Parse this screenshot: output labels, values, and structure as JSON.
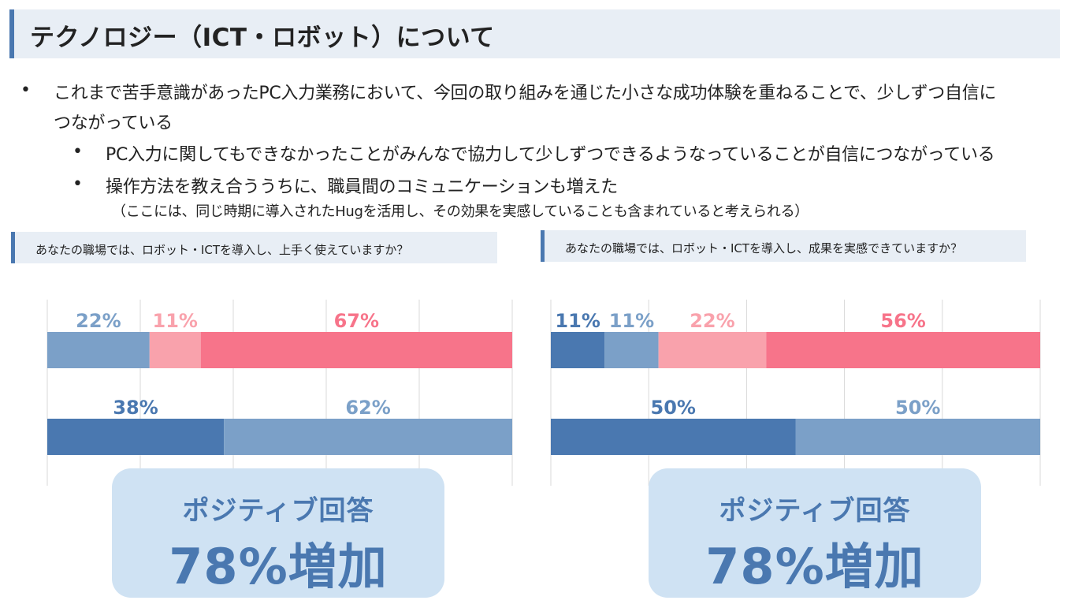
{
  "title": "テクノロジー（ICT・ロボット）について",
  "bullets": [
    {
      "dot": "•",
      "lines": [
        "これまで苦手意識があったPC入力業務において、今回の取り組みを通じた小さな成功体験を重ねることで、少しずつ自信に",
        "つながっている"
      ]
    },
    {
      "dot": "•",
      "lines": [
        "PC入力に関してもできなかったことがみんなで協力して少しずつできるようなっていることが自信につながっている"
      ]
    },
    {
      "dot": "•",
      "lines": [
        "操作方法を教え合ううちに、職員間のコミュニケーションも増えた"
      ]
    }
  ],
  "note": "（ここには、同じ時期に導入されたHugを活用し、その効果を実感していることも含まれていると考えられる）",
  "colors": {
    "dark_blue": "#4a78b0",
    "mid_blue": "#7ba0c8",
    "light_pink": "#f9a2ac",
    "pink": "#f7748a",
    "callout_bg": "#cfe2f3",
    "header_bg": "#e8eef5",
    "grid": "#d9d9d9"
  },
  "chart_data": [
    {
      "type": "bar",
      "question": "あなたの職場では、ロボット・ICTを導入し、上手く使えていますか？",
      "orientation": "horizontal-stacked-100",
      "rows": [
        {
          "segments": [
            {
              "value": 22,
              "label": "22%",
              "color": "#7ba0c8"
            },
            {
              "value": 11,
              "label": "11%",
              "color": "#f9a2ac"
            },
            {
              "value": 67,
              "label": "67%",
              "color": "#f7748a"
            }
          ]
        },
        {
          "segments": [
            {
              "value": 38,
              "label": "38%",
              "color": "#4a78b0"
            },
            {
              "value": 62,
              "label": "62%",
              "color": "#7ba0c8"
            }
          ]
        }
      ],
      "callout": {
        "label": "ポジティブ回答",
        "value": "78%増加"
      }
    },
    {
      "type": "bar",
      "question": "あなたの職場では、ロボット・ICTを導入し、成果を実感できていますか？",
      "orientation": "horizontal-stacked-100",
      "rows": [
        {
          "segments": [
            {
              "value": 11,
              "label": "11%",
              "color": "#4a78b0"
            },
            {
              "value": 11,
              "label": "11%",
              "color": "#7ba0c8"
            },
            {
              "value": 22,
              "label": "22%",
              "color": "#f9a2ac"
            },
            {
              "value": 56,
              "label": "56%",
              "color": "#f7748a"
            }
          ]
        },
        {
          "segments": [
            {
              "value": 50,
              "label": "50%",
              "color": "#4a78b0"
            },
            {
              "value": 50,
              "label": "50%",
              "color": "#7ba0c8"
            }
          ]
        }
      ],
      "callout": {
        "label": "ポジティブ回答",
        "value": "78%増加"
      }
    }
  ]
}
